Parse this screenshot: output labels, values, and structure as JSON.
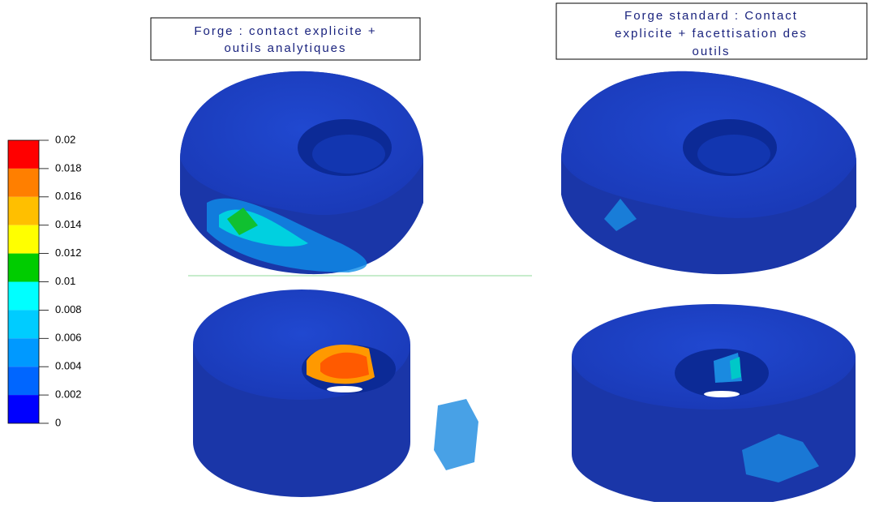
{
  "legend": {
    "ticks": [
      0.02,
      0.018,
      0.016,
      0.014,
      0.012,
      0.01,
      0.008,
      0.006,
      0.004,
      0.002,
      0
    ],
    "colors": [
      "#ff0000",
      "#ff7f00",
      "#ffbf00",
      "#ffff00",
      "#00cc00",
      "#00ffff",
      "#00ccff",
      "#0099ff",
      "#0066ff",
      "#0000ff"
    ]
  },
  "panels": [
    {
      "title_lines": [
        "Forge : contact explicite +",
        "outils analytiques"
      ]
    },
    {
      "title_lines": [
        "Forge standard : Contact",
        "explicite + facettisation des",
        "outils"
      ]
    }
  ]
}
